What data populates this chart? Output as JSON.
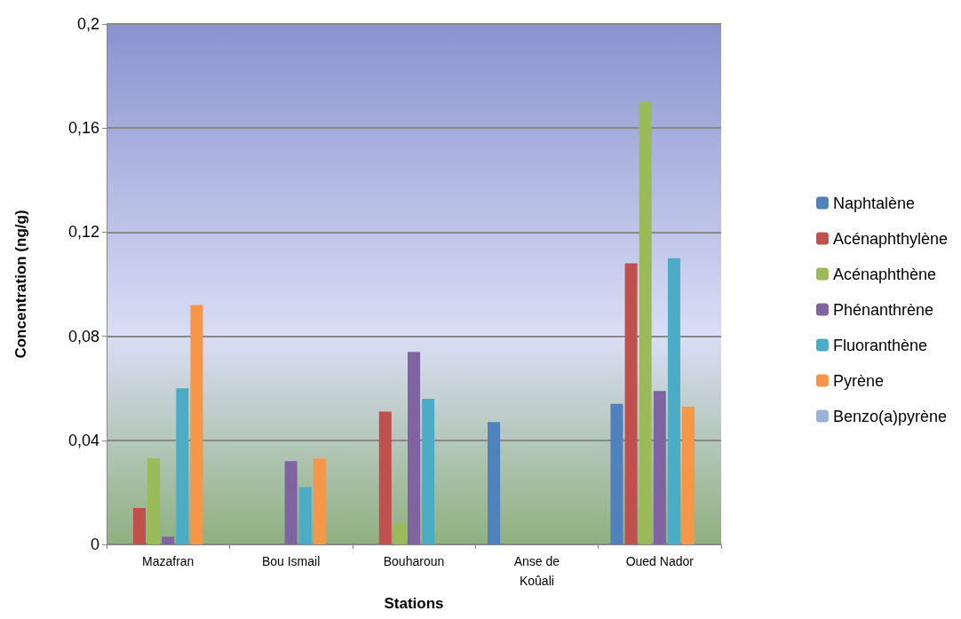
{
  "chart_data": {
    "type": "bar",
    "xlabel": "Stations",
    "ylabel": "Concentration (ng/g)",
    "categories": [
      "Mazafran",
      "Bou Ismail",
      "Bouharoun",
      "Anse de\nKoûali",
      "Oued Nador"
    ],
    "series": [
      {
        "name": "Naphtalène",
        "color": "#4f81bd",
        "values": [
          0,
          0,
          0,
          0.047,
          0.054
        ]
      },
      {
        "name": "Acénaphthylène",
        "color": "#c0504d",
        "values": [
          0.014,
          null,
          0.051,
          null,
          0.108
        ]
      },
      {
        "name": "Acénaphthène",
        "color": "#9bbb59",
        "values": [
          0.033,
          null,
          0.008,
          null,
          0.17
        ]
      },
      {
        "name": "Phénanthrène",
        "color": "#8064a2",
        "values": [
          0.003,
          0.032,
          0.074,
          null,
          0.059
        ]
      },
      {
        "name": "Fluoranthène",
        "color": "#4bacc6",
        "values": [
          0.06,
          0.022,
          0.056,
          null,
          0.11
        ]
      },
      {
        "name": "Pyrène",
        "color": "#f79646",
        "values": [
          0.092,
          0.033,
          null,
          null,
          0.053
        ]
      },
      {
        "name": "Benzo(a)pyrène",
        "color": "#95b3d7",
        "values": [
          null,
          null,
          null,
          null,
          null
        ]
      }
    ],
    "ylim": [
      0,
      0.2
    ],
    "yticks": [
      0,
      {
        "value": 0.04,
        "label": "0,04"
      },
      {
        "value": 0.08,
        "label": "0,08"
      },
      {
        "value": 0.12,
        "label": "0,12"
      },
      {
        "value": 0.16,
        "label": "0,16"
      },
      {
        "value": 0.2,
        "label": "0,2"
      }
    ],
    "grid": "y",
    "legend": "right"
  }
}
